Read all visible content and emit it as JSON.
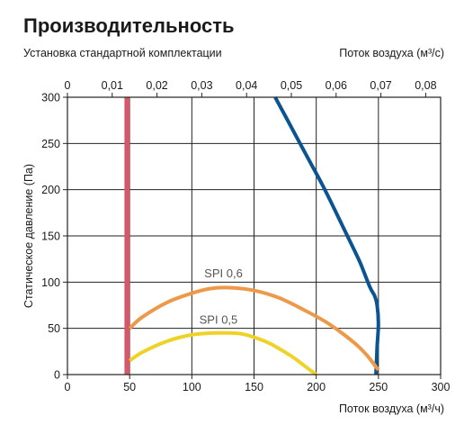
{
  "header": {
    "title": "Производительность",
    "subtitle": "Установка стандартной комплектации",
    "top_axis_label": "Поток воздуха (м³/с)"
  },
  "chart_data": {
    "type": "line",
    "title": "Производительность",
    "subtitle": "Установка стандартной комплектации",
    "xlabel": "Поток воздуха (м³/ч)",
    "x2label": "Поток воздуха (м³/с)",
    "ylabel": "Статическое давление (Па)",
    "xlim": [
      0,
      300
    ],
    "ylim": [
      0,
      300
    ],
    "xticks": [
      "0",
      "50",
      "100",
      "150",
      "200",
      "250",
      "300"
    ],
    "x2ticks": [
      "0",
      "0,01",
      "0,02",
      "0,03",
      "0,04",
      "0,05",
      "0,06",
      "0,07",
      "0,08"
    ],
    "yticks": [
      "0",
      "50",
      "100",
      "150",
      "200",
      "250",
      "300"
    ],
    "grid": true,
    "series": [
      {
        "name": "",
        "color": "#d5576a",
        "kind": "vertical-limit",
        "x": [
          48,
          48
        ],
        "y": [
          0,
          300
        ]
      },
      {
        "name": "",
        "color": "#0b5491",
        "x": [
          167,
          175,
          185,
          195,
          205,
          215,
          225,
          235,
          243,
          247,
          249,
          250,
          249,
          248
        ],
        "y": [
          300,
          280,
          255,
          230,
          205,
          178,
          150,
          122,
          95,
          85,
          75,
          55,
          30,
          0
        ]
      },
      {
        "name": "SPI 0,6",
        "color": "#ec9a4a",
        "x": [
          50,
          60,
          80,
          100,
          115,
          130,
          150,
          170,
          190,
          210,
          230,
          240,
          250
        ],
        "y": [
          50,
          62,
          78,
          88,
          93,
          94,
          91,
          83,
          70,
          55,
          35,
          22,
          5
        ]
      },
      {
        "name": "SPI 0,5",
        "color": "#f0d227",
        "x": [
          50,
          60,
          80,
          100,
          120,
          140,
          155,
          165,
          180,
          190,
          200
        ],
        "y": [
          15,
          24,
          36,
          43,
          45,
          44,
          38,
          32,
          20,
          10,
          0
        ]
      }
    ],
    "annotations": [
      {
        "text": "SPI 0,6",
        "x": 110,
        "y": 105
      },
      {
        "text": "SPI 0,5",
        "x": 106,
        "y": 55
      }
    ]
  }
}
